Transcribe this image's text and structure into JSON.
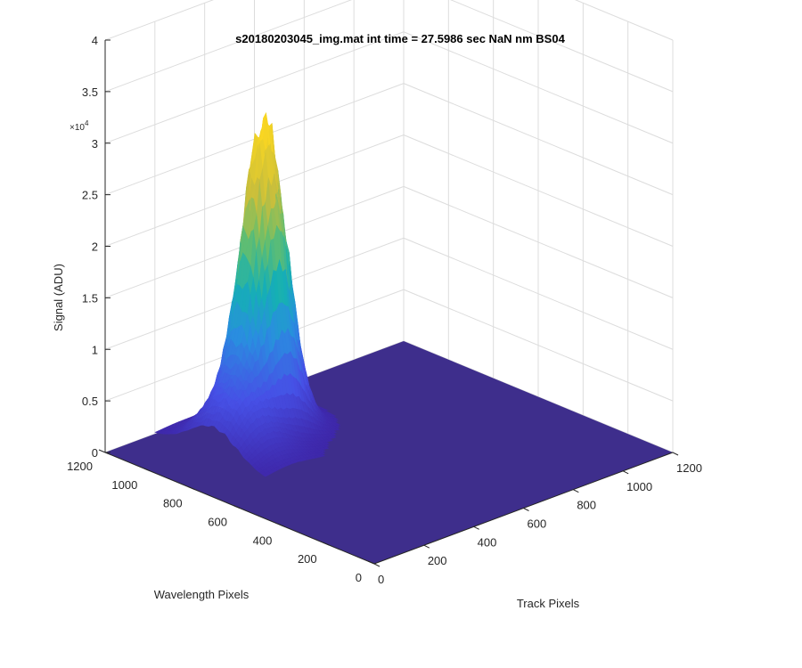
{
  "figure": {
    "title": "s20180203045_img.mat int time = 27.5986 sec  NaN nm BS04"
  },
  "chart_data": {
    "type": "surface",
    "title": "s20180203045_img.mat int time = 27.5986 sec  NaN nm BS04",
    "xlabel": "Track Pixels",
    "ylabel": "Wavelength Pixels",
    "zlabel": "Signal (ADU)",
    "xlim": [
      0,
      1200
    ],
    "ylim": [
      0,
      1200
    ],
    "zlim": [
      0,
      40000
    ],
    "z_exponent_label": "×10",
    "z_exponent_power": "4",
    "x_ticks": [
      "0",
      "200",
      "400",
      "600",
      "800",
      "1000",
      "1200"
    ],
    "y_ticks": [
      "0",
      "200",
      "400",
      "600",
      "800",
      "1000",
      "1200"
    ],
    "z_ticks": [
      "0",
      "0.5",
      "1",
      "1.5",
      "2",
      "2.5",
      "3",
      "3.5",
      "4"
    ],
    "grid": true,
    "colormap": "parula",
    "colors": {
      "floor": "#3e2e8c",
      "low": "#3e26a8",
      "mid": "#2a8de0",
      "teal": "#15b0b4",
      "green": "#80c24c",
      "high": "#f9d622",
      "grid": "#dcdcdc",
      "axis": "#262626"
    },
    "surface": {
      "baseline": 0,
      "main_peak": {
        "track_center": 460,
        "wavelength_center": 1000,
        "peak_signal": 29000
      },
      "secondary_ridge": {
        "track_center": 300,
        "wavelength_center": 940,
        "signal": 6000
      },
      "minor_bump": {
        "track_center": 150,
        "wavelength_center": 900,
        "signal": 1000
      }
    }
  }
}
